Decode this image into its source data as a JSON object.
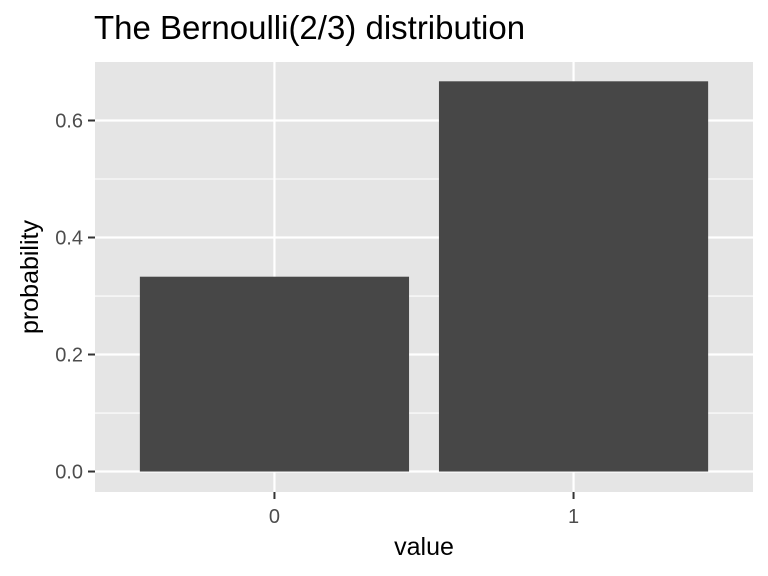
{
  "chart_data": {
    "type": "bar",
    "title": "The Bernoulli(2/3) distribution",
    "xlabel": "value",
    "ylabel": "probability",
    "categories": [
      "0",
      "1"
    ],
    "values": [
      0.333,
      0.667
    ],
    "ylim": [
      -0.035,
      0.7
    ],
    "yticks": [
      0,
      0.2,
      0.4,
      0.6
    ],
    "ytick_labels": [
      "0.0",
      "0.2",
      "0.4",
      "0.6"
    ],
    "grid": true,
    "colors": {
      "panel_background": "#e5e5e5",
      "grid_line": "#ffffff",
      "bar_fill": "#474747",
      "tick_mark": "#333333",
      "tick_text": "#4d4d4d",
      "text": "#000000"
    }
  }
}
